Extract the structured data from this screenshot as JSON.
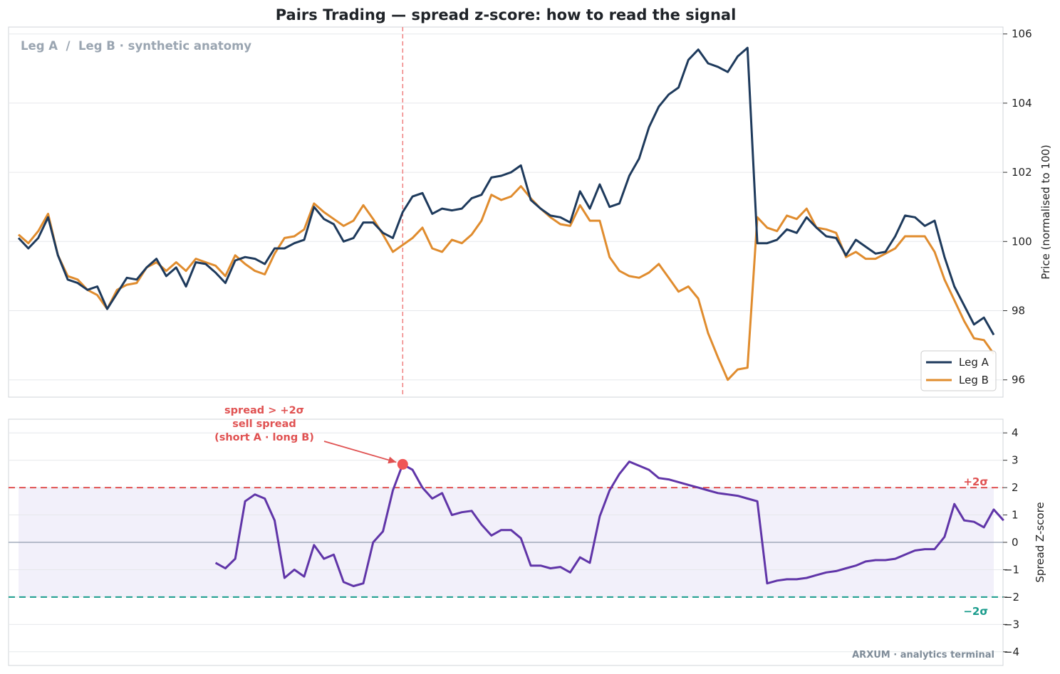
{
  "title": "Pairs Trading — spread z-score: how to read the signal",
  "watermark": "Leg A  /  Leg B · synthetic anatomy",
  "brand": "ARXUM · analytics terminal",
  "colors": {
    "leg_a": "#1e3a5c",
    "leg_b": "#e08c2e",
    "zscore": "#6035a8",
    "upper_band": "#e05252",
    "lower_band": "#1a9c8c",
    "band_fill": "#ece9f8",
    "entry_marker": "#f05656",
    "event_line": "#f08080"
  },
  "chart_data": [
    {
      "type": "line",
      "ylabel": "Price (normalised to 100)",
      "ylim": [
        95.5,
        106.2
      ],
      "yticks": [
        96,
        98,
        100,
        102,
        104,
        106
      ],
      "legend": "bottom-right",
      "grid": true,
      "x": [
        0,
        1,
        2,
        3,
        4,
        5,
        6,
        7,
        8,
        9,
        10,
        11,
        12,
        13,
        14,
        15,
        16,
        17,
        18,
        19,
        20,
        21,
        22,
        23,
        24,
        25,
        26,
        27,
        28,
        29,
        30,
        31,
        32,
        33,
        34,
        35,
        36,
        37,
        38,
        39,
        40,
        41,
        42,
        43,
        44,
        45,
        46,
        47,
        48,
        49,
        50,
        51,
        52,
        53,
        54,
        55,
        56,
        57,
        58,
        59,
        60,
        61,
        62,
        63,
        64,
        65,
        66,
        67,
        68,
        69,
        70,
        71,
        72,
        73,
        74,
        75,
        76,
        77,
        78,
        79,
        80,
        81,
        82,
        83,
        84,
        85,
        86,
        87,
        88,
        89,
        90,
        91,
        92,
        93,
        94,
        95,
        96,
        97,
        98,
        99
      ],
      "series": [
        {
          "name": "Leg A",
          "values": [
            100.1,
            99.8,
            100.1,
            100.7,
            99.6,
            98.9,
            98.8,
            98.6,
            98.7,
            98.05,
            98.5,
            98.95,
            98.9,
            99.25,
            99.5,
            99.0,
            99.25,
            98.7,
            99.4,
            99.35,
            99.1,
            98.8,
            99.45,
            99.55,
            99.5,
            99.35,
            99.8,
            99.8,
            99.95,
            100.05,
            101.0,
            100.65,
            100.5,
            100.0,
            100.1,
            100.55,
            100.55,
            100.25,
            100.1,
            100.85,
            101.3,
            101.4,
            100.8,
            100.95,
            100.9,
            100.95,
            101.25,
            101.35,
            101.85,
            101.9,
            102.0,
            102.2,
            101.2,
            100.95,
            100.75,
            100.7,
            100.55,
            101.45,
            100.95,
            101.65,
            101.0,
            101.1,
            101.9,
            102.4,
            103.3,
            103.9,
            104.25,
            104.45,
            105.25,
            105.55,
            105.15,
            105.05,
            104.9,
            105.35,
            105.6,
            99.95,
            99.95,
            100.05,
            100.35,
            100.25,
            100.7,
            100.4,
            100.15,
            100.1,
            99.6,
            100.05,
            99.85,
            99.65,
            99.7,
            100.15,
            100.75,
            100.7,
            100.45,
            100.6,
            99.55,
            98.7,
            98.15,
            97.6,
            97.8,
            97.3
          ]
        },
        {
          "name": "Leg B",
          "values": [
            100.2,
            99.95,
            100.3,
            100.8,
            99.6,
            99.0,
            98.9,
            98.6,
            98.45,
            98.05,
            98.6,
            98.75,
            98.8,
            99.25,
            99.4,
            99.15,
            99.4,
            99.15,
            99.5,
            99.4,
            99.3,
            99.0,
            99.6,
            99.35,
            99.15,
            99.05,
            99.65,
            100.1,
            100.15,
            100.35,
            101.1,
            100.85,
            100.65,
            100.45,
            100.6,
            101.05,
            100.65,
            100.2,
            99.7,
            99.9,
            100.1,
            100.4,
            99.8,
            99.7,
            100.05,
            99.95,
            100.2,
            100.6,
            101.35,
            101.2,
            101.3,
            101.6,
            101.25,
            100.95,
            100.7,
            100.5,
            100.45,
            101.05,
            100.6,
            100.6,
            99.55,
            99.15,
            99.0,
            98.95,
            99.1,
            99.35,
            98.95,
            98.55,
            98.7,
            98.35,
            97.35,
            96.65,
            96.0,
            96.3,
            96.35,
            100.7,
            100.4,
            100.3,
            100.75,
            100.65,
            100.95,
            100.4,
            100.35,
            100.25,
            99.55,
            99.7,
            99.5,
            99.5,
            99.65,
            99.8,
            100.15,
            100.15,
            100.15,
            99.7,
            98.9,
            98.3,
            97.7,
            97.2,
            97.15,
            96.75
          ]
        }
      ],
      "events": [
        {
          "x": 39,
          "label": ""
        }
      ]
    },
    {
      "type": "line",
      "ylabel": "Spread Z-score",
      "ylim": [
        -4.5,
        4.5
      ],
      "yticks": [
        -4,
        -3,
        -2,
        -1,
        0,
        1,
        2,
        3,
        4
      ],
      "grid": true,
      "x_start": 20,
      "series": [
        {
          "name": "",
          "values": [
            -0.75,
            -0.95,
            -0.6,
            1.5,
            1.75,
            1.6,
            0.8,
            -1.3,
            -1.0,
            -1.25,
            -0.1,
            -0.6,
            -0.45,
            -1.45,
            -1.6,
            -1.5,
            0.0,
            0.4,
            1.9,
            2.85,
            2.65,
            2.0,
            1.6,
            1.8,
            1.0,
            1.1,
            1.15,
            0.65,
            0.25,
            0.45,
            0.45,
            0.15,
            -0.85,
            -0.85,
            -0.95,
            -0.9,
            -1.1,
            -0.55,
            -0.75,
            0.95,
            1.9,
            2.5,
            2.95,
            2.8,
            2.65,
            2.35,
            2.3,
            2.2,
            2.1,
            2.0,
            1.9,
            1.8,
            1.75,
            1.7,
            1.6,
            1.5,
            -1.5,
            -1.4,
            -1.35,
            -1.35,
            -1.3,
            -1.2,
            -1.1,
            -1.05,
            -0.95,
            -0.85,
            -0.7,
            -0.65,
            -0.65,
            -0.6,
            -0.45,
            -0.3,
            -0.25,
            -0.25,
            0.2,
            1.4,
            0.8,
            0.75,
            0.55,
            1.2,
            0.8
          ]
        }
      ],
      "thresholds": [
        {
          "value": 2,
          "label": "+2σ"
        },
        {
          "value": -2,
          "label": "−2σ"
        }
      ],
      "annotation": {
        "x": 39,
        "y": 2.85,
        "lines": [
          "spread > +2σ",
          "sell spread",
          "(short A · long B)"
        ]
      }
    }
  ]
}
